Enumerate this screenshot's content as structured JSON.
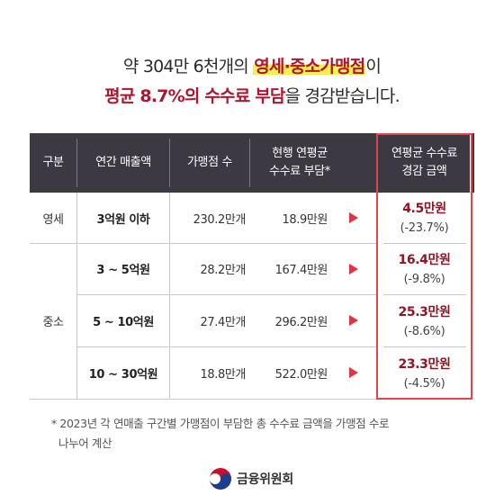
{
  "headline": {
    "line1_prefix": "약 304만 6천개의 ",
    "line1_highlight": "영세·중소가맹점",
    "line1_suffix": "이",
    "line2_highlight": "평균 8.7%의 수수료 부담",
    "line2_suffix": "을 경감받습니다."
  },
  "table": {
    "headers": {
      "category": "구분",
      "annual_sales": "연간 매출액",
      "store_count": "가맹점 수",
      "current_fee_line1": "현행 연평균",
      "current_fee_line2": "수수료 부담*",
      "reduction_line1": "연평균 수수료",
      "reduction_line2": "경감 금액"
    },
    "groups": {
      "small": "영세",
      "medium": "중소"
    },
    "rows": [
      {
        "sales": "3억원 이하",
        "stores": "230.2만개",
        "fee": "18.9만원",
        "amount": "4.5만원",
        "pct": "(-23.7%)"
      },
      {
        "sales": "3 ~ 5억원",
        "stores": "28.2만개",
        "fee": "167.4만원",
        "amount": "16.4만원",
        "pct": "(-9.8%)"
      },
      {
        "sales": "5 ~ 10억원",
        "stores": "27.4만개",
        "fee": "296.2만원",
        "amount": "25.3만원",
        "pct": "(-8.6%)"
      },
      {
        "sales": "10 ~ 30억원",
        "stores": "18.8만개",
        "fee": "522.0만원",
        "amount": "23.3만원",
        "pct": "(-4.5%)"
      }
    ]
  },
  "footnote": {
    "line1": "* 2023년 각 연매출 구간별 가맹점이 부담한 총 수수료 금액을 가맹점 수로",
    "line2": "나누어 계산"
  },
  "logo": {
    "name": "금융위원회",
    "icon": "taegeuk-emblem-icon"
  },
  "colors": {
    "header_bg": "#3c3943",
    "accent_red": "#b0152f",
    "highlight_yellow": "#f6ef4f",
    "box_border": "#e5434f",
    "value_red": "#8e1525"
  }
}
